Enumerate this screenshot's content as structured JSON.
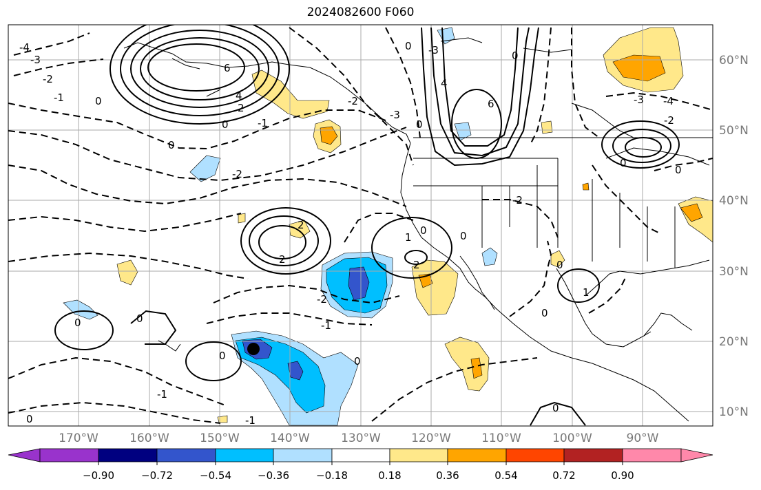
{
  "title": "2024082600 F060",
  "map": {
    "lon_range": [
      -180,
      -80
    ],
    "lat_range": [
      8,
      65
    ],
    "lat_labels": [
      "10°N",
      "20°N",
      "30°N",
      "40°N",
      "50°N",
      "60°N"
    ],
    "lon_labels": [
      "170°W",
      "160°W",
      "150°W",
      "140°W",
      "130°W",
      "120°W",
      "110°W",
      "100°W",
      "90°W"
    ],
    "gridlines": true,
    "storm_marker": {
      "lon": -144,
      "lat": 19.2
    }
  },
  "colorbar": {
    "tick_labels": [
      "−0.90",
      "−0.72",
      "−0.54",
      "−0.36",
      "−0.18",
      "0.18",
      "0.36",
      "0.54",
      "0.72",
      "0.90"
    ],
    "colors": [
      "#9933cc",
      "#000080",
      "#3355cc",
      "#00bfff",
      "#b0e0ff",
      "#ffffff",
      "#ffe88a",
      "#ffa500",
      "#ff4500",
      "#b22222",
      "#ff88aa"
    ],
    "extend": "both"
  },
  "contour_labels": [
    "-4",
    "-3",
    "-2",
    "-1",
    "0",
    "1",
    "2",
    "3",
    "4",
    "6"
  ],
  "colors": {
    "contour": "#000000",
    "grid": "#aaaaaa",
    "tick_label": "#777777"
  }
}
